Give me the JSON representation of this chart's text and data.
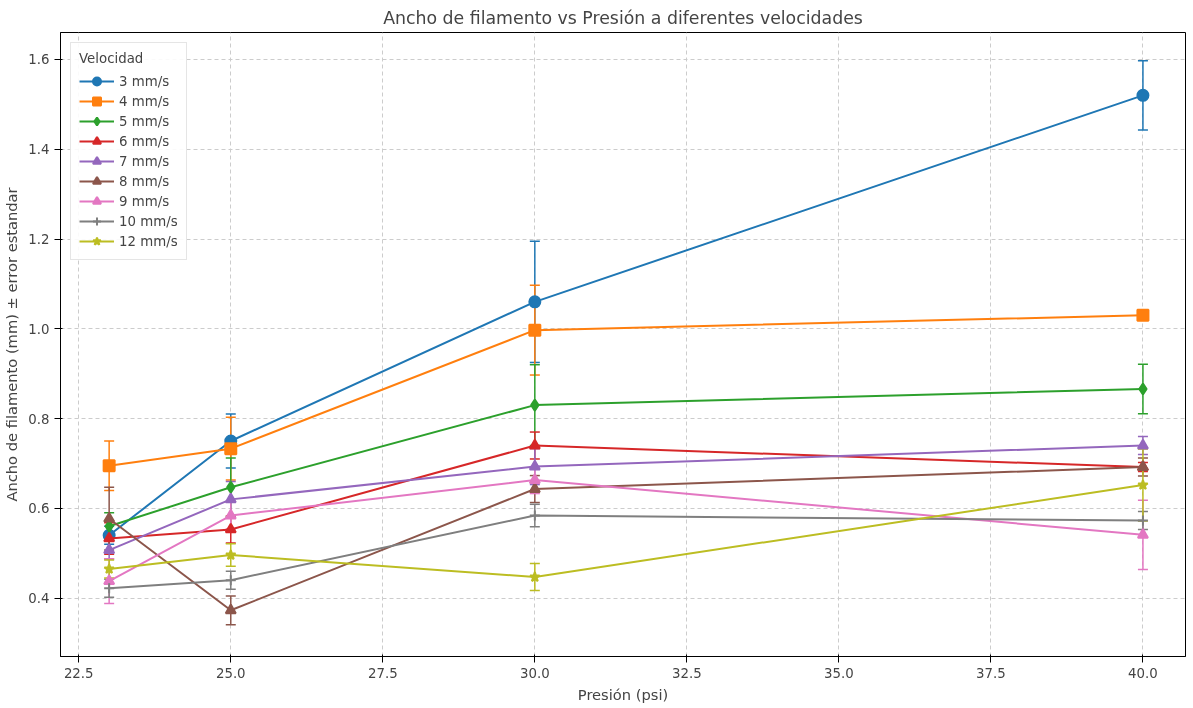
{
  "chart_data": {
    "type": "line",
    "title": "Ancho de filamento vs Presión a diferentes velocidades",
    "xlabel": "Presión (psi)",
    "ylabel": "Ancho de filamento (mm) ± error estandar",
    "legend_title": "Velocidad",
    "legend": "top left",
    "grid": true,
    "line_style": "solid",
    "x": [
      23,
      25,
      30,
      40
    ],
    "xlim": [
      22.2,
      40.7
    ],
    "xticks": [
      {
        "value": 22.5,
        "label": "22.5"
      },
      {
        "value": 25,
        "label": "25.0"
      },
      {
        "value": 27.5,
        "label": "27.5"
      },
      {
        "value": 30,
        "label": "30.0"
      },
      {
        "value": 32.5,
        "label": "32.5"
      },
      {
        "value": 35,
        "label": "35.0"
      },
      {
        "value": 37.5,
        "label": "37.5"
      },
      {
        "value": 40,
        "label": "40.0"
      }
    ],
    "ylim": [
      0.27,
      1.66
    ],
    "yticks": [
      {
        "value": 0.4,
        "label": "0.4"
      },
      {
        "value": 0.6,
        "label": "0.6"
      },
      {
        "value": 0.8,
        "label": "0.8"
      },
      {
        "value": 1.0,
        "label": "1.0"
      },
      {
        "value": 1.2,
        "label": "1.2"
      },
      {
        "value": 1.4,
        "label": "1.4"
      },
      {
        "value": 1.6,
        "label": "1.6"
      }
    ],
    "series": [
      {
        "name": "3 mm/s",
        "color": "#1f77b4",
        "marker": "circle",
        "values": [
          0.54,
          0.75,
          1.06,
          1.52
        ],
        "errors": [
          0.02,
          0.06,
          0.135,
          0.077
        ]
      },
      {
        "name": "4 mm/s",
        "color": "#ff7f0e",
        "marker": "square",
        "values": [
          0.695,
          0.733,
          0.997,
          1.03
        ],
        "errors": [
          0.055,
          0.07,
          0.1,
          0.005
        ]
      },
      {
        "name": "5 mm/s",
        "color": "#2ca02c",
        "marker": "diamond",
        "values": [
          0.56,
          0.647,
          0.83,
          0.866
        ],
        "errors": [
          0.03,
          0.065,
          0.09,
          0.055
        ]
      },
      {
        "name": "6 mm/s",
        "color": "#d62728",
        "marker": "triangle",
        "values": [
          0.533,
          0.553,
          0.74,
          0.692
        ],
        "errors": [
          0.035,
          0.03,
          0.03,
          0.01
        ]
      },
      {
        "name": "7 mm/s",
        "color": "#9467bd",
        "marker": "triangle",
        "values": [
          0.507,
          0.62,
          0.693,
          0.74
        ],
        "errors": [
          0.02,
          0.04,
          0.04,
          0.02
        ]
      },
      {
        "name": "8 mm/s",
        "color": "#8c564b",
        "marker": "triangle",
        "values": [
          0.577,
          0.373,
          0.643,
          0.692
        ],
        "errors": [
          0.07,
          0.032,
          0.03,
          0.02
        ]
      },
      {
        "name": "9 mm/s",
        "color": "#e377c2",
        "marker": "triangle",
        "values": [
          0.438,
          0.584,
          0.663,
          0.541
        ],
        "errors": [
          0.05,
          0.03,
          0.03,
          0.077
        ]
      },
      {
        "name": "10 mm/s",
        "color": "#7f7f7f",
        "marker": "cross",
        "values": [
          0.422,
          0.44,
          0.584,
          0.573
        ],
        "errors": [
          0.02,
          0.02,
          0.025,
          0.02
        ]
      },
      {
        "name": "12 mm/s",
        "color": "#bcbd22",
        "marker": "star",
        "values": [
          0.465,
          0.496,
          0.447,
          0.652
        ],
        "errors": [
          0.02,
          0.025,
          0.03,
          0.08
        ]
      }
    ]
  }
}
